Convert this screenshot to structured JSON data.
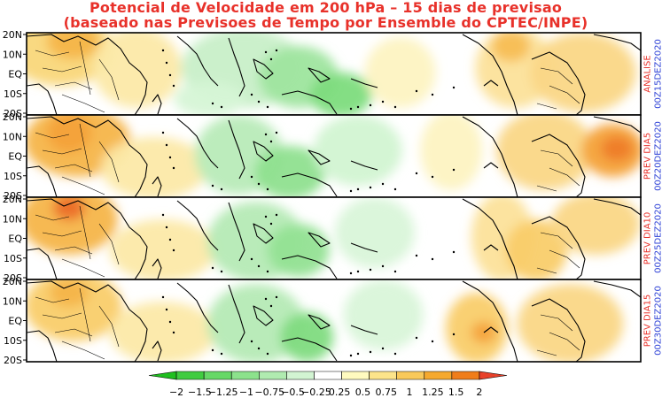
{
  "title": {
    "line1": "Potencial de Velocidade em 200 hPa – 15 dias de previsao",
    "line2": "(baseado nas Previsoes de Tempo por Ensemble do CPTEC/INPE)"
  },
  "panels": [
    {
      "label": "ANALISE",
      "date": "00Z15DEZ2020"
    },
    {
      "label": "PREV DIA5",
      "date": "00Z20DEZ2020"
    },
    {
      "label": "PREV DIA10",
      "date": "00Z25DEZ2020"
    },
    {
      "label": "PREV DIA15",
      "date": "00Z30DEZ2020"
    }
  ],
  "lat_labels": [
    "20N",
    "10N",
    "EQ",
    "10S",
    "20S"
  ],
  "colorbar": {
    "labels": [
      "−2",
      "−1.5",
      "−1.25",
      "−1",
      "−0.75",
      "−0.5",
      "−0.25",
      "0.25",
      "0.5",
      "0.75",
      "1",
      "1.25",
      "1.5",
      "2"
    ],
    "colors": [
      "#1fbf1f",
      "#40cc40",
      "#66d866",
      "#8ce28c",
      "#b0ebb0",
      "#d2f4d2",
      "#ffffff",
      "#fffabf",
      "#fce48a",
      "#f9c95a",
      "#f6a92e",
      "#f07d1a",
      "#e8412a"
    ]
  }
}
